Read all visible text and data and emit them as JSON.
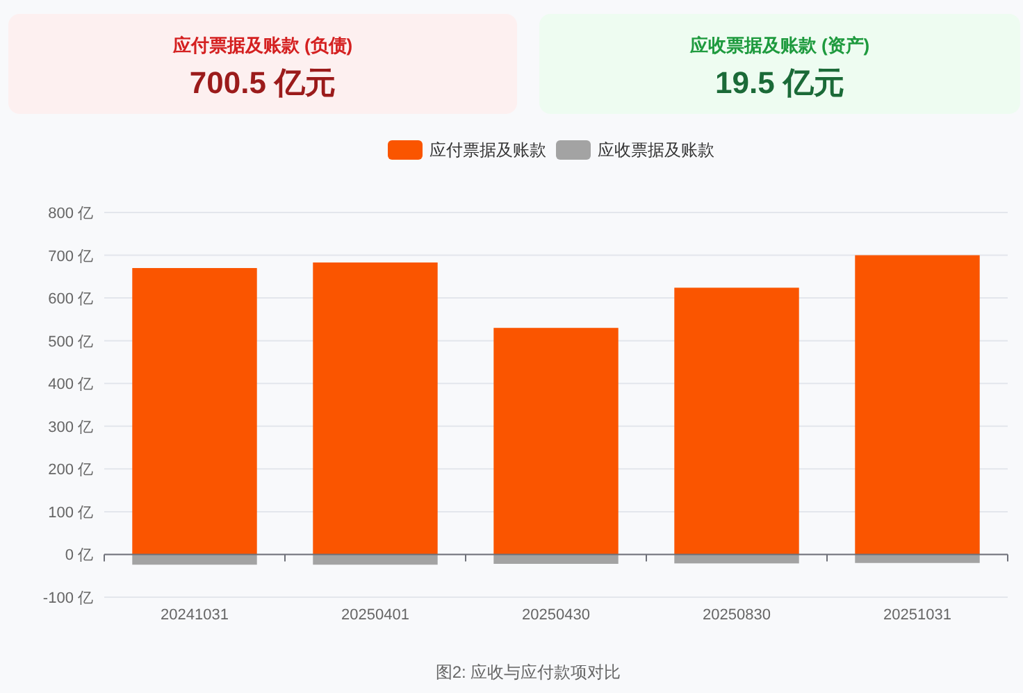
{
  "chart_data": {
    "type": "bar",
    "stacked": true,
    "categories": [
      "20241031",
      "20250401",
      "20250430",
      "20250830",
      "20251031"
    ],
    "series": [
      {
        "name": "应付票据及账款",
        "color": "#fa5500",
        "values": [
          670,
          683,
          530,
          624,
          700
        ]
      },
      {
        "name": "应收票据及账款",
        "color": "#a3a3a3",
        "values": [
          -24,
          -24,
          -22,
          -21,
          -20
        ]
      }
    ],
    "ylim": [
      -100,
      800
    ],
    "yticks": [
      {
        "value": -100,
        "label": "-100 亿"
      },
      {
        "value": 0,
        "label": "0 亿"
      },
      {
        "value": 100,
        "label": "100 亿"
      },
      {
        "value": 200,
        "label": "200 亿"
      },
      {
        "value": 300,
        "label": "300 亿"
      },
      {
        "value": 400,
        "label": "400 亿"
      },
      {
        "value": 500,
        "label": "500 亿"
      },
      {
        "value": 600,
        "label": "600 亿"
      },
      {
        "value": 700,
        "label": "700 亿"
      },
      {
        "value": 800,
        "label": "800 亿"
      }
    ],
    "grid": "y",
    "legend": "top",
    "annotations": [
      "应付票据及账款 (负债)",
      "700.5 亿元",
      "应收票据及账款 (资产)",
      "19.5 亿元",
      "图2: 应收与应付款项对比"
    ]
  }
}
